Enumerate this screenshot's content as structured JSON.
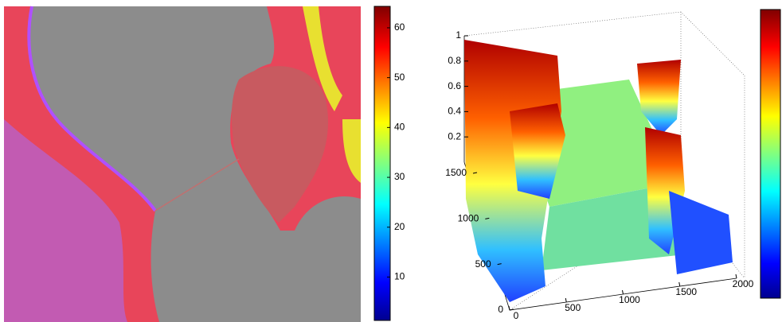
{
  "colorbar_left": {
    "range": [
      1.3,
      64.3
    ],
    "ticks": [
      10,
      20,
      30,
      40,
      50,
      60
    ]
  },
  "plot3d": {
    "zlim": [
      0,
      1
    ],
    "zticks": [
      0.2,
      0.4,
      0.6,
      0.8,
      1
    ],
    "ylim": [
      0,
      1500
    ],
    "yticks": [
      0,
      500,
      1000,
      1500
    ],
    "xlim": [
      0,
      2000
    ],
    "xticks": [
      0,
      500,
      1000,
      1500,
      2000
    ]
  }
}
